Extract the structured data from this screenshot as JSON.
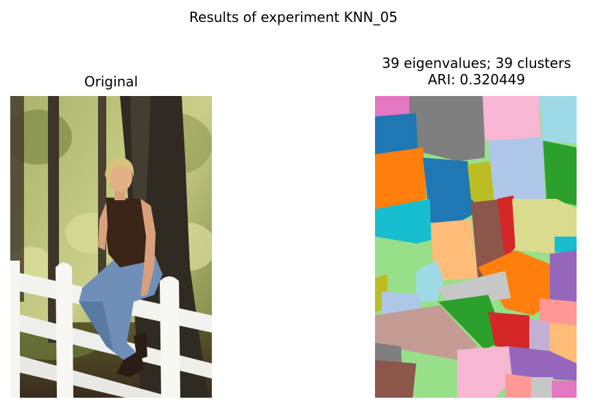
{
  "figure": {
    "suptitle": "Results of experiment KNN_05"
  },
  "panels": {
    "left": {
      "title": "Original"
    },
    "right": {
      "title_line1": "39 eigenvalues; 39 clusters",
      "title_line2": "ARI: 0.320449"
    }
  },
  "colors": {
    "pink": "#e377c2",
    "gray": "#7f7f7f",
    "light_pink": "#f7b6d2",
    "light_cyan": "#9edae5",
    "blue": "#1f77b4",
    "light_blue": "#aec7e8",
    "green": "#2ca02c",
    "orange": "#ff7f0e",
    "olive": "#bcbd22",
    "red": "#d62728",
    "khaki": "#dbdb8d",
    "cyan": "#17becf",
    "brown": "#8c564b",
    "light_orange": "#ffbb78",
    "light_green": "#98df8a",
    "silver": "#c7c7c7",
    "purple": "#9467bd",
    "light_red": "#ff9896",
    "light_purple": "#c5b0d5",
    "rose_brown": "#c49c94"
  }
}
